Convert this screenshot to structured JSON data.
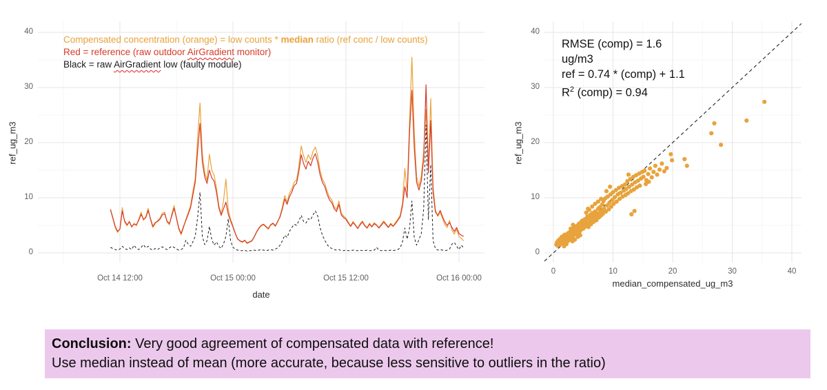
{
  "colors": {
    "orange": "#E9A23B",
    "red": "#D43A28",
    "black": "#1B1B1B",
    "scatter_point": "#E8A33C",
    "grid_major": "#E5E5E5",
    "grid_minor": "#F3F3F3",
    "identity_line": "#333333",
    "tick_label": "#606060",
    "axis_title": "#2B2B2B",
    "conclusion_bg": "#ECC9EC"
  },
  "chart_data": [
    {
      "type": "line",
      "title": "",
      "xlabel": "date",
      "ylabel": "ref_ug_m3",
      "ylim": [
        0,
        40
      ],
      "y_ticks": [
        0,
        10,
        20,
        30,
        40
      ],
      "x_ticks": [
        {
          "t": 12,
          "label": "Oct 14 12:00"
        },
        {
          "t": 24,
          "label": "Oct 15 00:00"
        },
        {
          "t": 36,
          "label": "Oct 15 12:00"
        },
        {
          "t": 48,
          "label": "Oct 16 00:00"
        }
      ],
      "x_minor_ticks": [
        6,
        18,
        30,
        42
      ],
      "time_axis_note": "t = hours since Oct 14 00:00",
      "t_start": 11.0,
      "t_step": 0.25,
      "legend": [
        {
          "color_key": "orange",
          "pre": "Compensated concentration (orange) = low counts * ",
          "bold": "median",
          "post": " ratio (ref conc / low counts)"
        },
        {
          "color_key": "red",
          "pre": "Red = reference (raw outdoor ",
          "spellcheck": "AirGradient",
          "post": " monitor)"
        },
        {
          "color_key": "black",
          "pre": "Black = raw ",
          "spellcheck": "AirGradient",
          "post": " low (faulty module)"
        }
      ],
      "series": [
        {
          "name": "compensated_orange",
          "color_key": "orange",
          "style": "solid",
          "values": [
            7.8,
            6.2,
            4.6,
            3.7,
            4.4,
            8.2,
            5.6,
            4.9,
            5.8,
            4.6,
            5.4,
            4.9,
            6.1,
            7.4,
            5.9,
            6.6,
            8.1,
            6.0,
            4.6,
            5.3,
            5.9,
            6.3,
            7.2,
            7.4,
            5.6,
            5.1,
            7.0,
            8.6,
            6.2,
            4.3,
            3.3,
            4.6,
            6.1,
            7.3,
            8.6,
            11.2,
            13.5,
            21.0,
            27.2,
            18.0,
            14.6,
            13.2,
            17.9,
            15.0,
            14.1,
            11.8,
            8.6,
            7.1,
            9.4,
            13.4,
            7.8,
            6.1,
            4.9,
            3.6,
            2.6,
            2.1,
            1.9,
            2.2,
            1.7,
            1.9,
            2.1,
            2.8,
            3.7,
            4.4,
            4.9,
            5.1,
            4.7,
            4.3,
            5.0,
            5.3,
            4.8,
            5.6,
            6.7,
            8.4,
            10.4,
            9.2,
            10.8,
            11.6,
            12.8,
            13.2,
            15.8,
            19.4,
            17.6,
            16.4,
            17.8,
            16.9,
            18.4,
            19.2,
            17.6,
            15.0,
            13.4,
            12.6,
            11.2,
            10.1,
            9.6,
            8.4,
            7.9,
            9.4,
            7.2,
            6.7,
            6.3,
            5.6,
            4.9,
            5.7,
            5.1,
            4.5,
            5.3,
            5.8,
            5.0,
            4.6,
            5.4,
            4.8,
            5.5,
            5.1,
            4.6,
            5.2,
            5.8,
            5.3,
            4.7,
            5.4,
            4.9,
            5.5,
            6.1,
            6.8,
            9.0,
            15.3,
            11.0,
            24.0,
            35.5,
            22.0,
            13.8,
            12.1,
            13.9,
            18.5,
            26.0,
            15.5,
            28.0,
            12.0,
            7.8,
            6.6,
            7.4,
            6.2,
            5.1,
            4.6,
            5.9,
            4.1,
            3.4,
            4.3,
            3.0,
            2.6,
            2.2
          ]
        },
        {
          "name": "reference_red",
          "color_key": "red",
          "style": "solid",
          "values": [
            7.9,
            6.4,
            4.8,
            3.9,
            4.3,
            7.6,
            5.8,
            5.1,
            5.6,
            4.8,
            5.2,
            5.1,
            5.9,
            7.0,
            6.1,
            6.4,
            7.7,
            6.2,
            4.8,
            5.5,
            5.7,
            6.1,
            6.9,
            7.1,
            5.8,
            5.3,
            6.7,
            8.1,
            6.4,
            4.5,
            3.5,
            4.8,
            5.9,
            7.0,
            8.2,
            10.5,
            12.8,
            18.5,
            23.5,
            16.5,
            13.8,
            12.6,
            15.0,
            13.6,
            13.0,
            11.0,
            8.2,
            6.8,
            8.0,
            9.2,
            7.0,
            5.8,
            4.7,
            3.5,
            2.5,
            2.2,
            2.0,
            2.3,
            1.8,
            2.0,
            2.2,
            2.9,
            3.8,
            4.5,
            5.0,
            5.2,
            4.8,
            4.4,
            5.1,
            5.4,
            4.9,
            5.7,
            6.5,
            8.0,
            9.8,
            8.8,
            10.2,
            11.0,
            12.2,
            12.6,
            14.8,
            17.8,
            16.2,
            15.2,
            16.6,
            15.8,
            17.2,
            18.0,
            16.4,
            14.2,
            12.8,
            12.0,
            10.6,
            9.6,
            9.1,
            8.0,
            7.5,
            8.8,
            6.9,
            6.4,
            6.1,
            5.4,
            4.8,
            5.5,
            5.0,
            4.4,
            5.1,
            5.6,
            4.9,
            4.5,
            5.2,
            4.7,
            5.3,
            5.0,
            4.5,
            5.0,
            5.6,
            5.1,
            4.6,
            5.2,
            4.8,
            5.3,
            5.9,
            6.5,
            8.5,
            12.0,
            10.0,
            22.0,
            29.5,
            19.0,
            12.8,
            11.4,
            13.0,
            17.0,
            30.5,
            14.5,
            24.0,
            11.0,
            7.4,
            6.8,
            7.7,
            6.6,
            5.6,
            5.0,
            5.5,
            4.6,
            3.9,
            4.6,
            3.5,
            3.2,
            3.0
          ]
        },
        {
          "name": "raw_airgradient_low_black",
          "color_key": "black",
          "style": "dashed",
          "values": [
            1.0,
            0.8,
            0.6,
            0.5,
            0.7,
            1.2,
            0.8,
            0.6,
            0.9,
            0.6,
            1.4,
            0.8,
            0.6,
            1.0,
            1.5,
            0.9,
            1.2,
            0.7,
            0.5,
            0.8,
            0.6,
            0.9,
            1.1,
            0.8,
            0.6,
            0.9,
            1.2,
            1.0,
            0.7,
            0.5,
            0.6,
            0.9,
            2.3,
            1.6,
            1.2,
            2.0,
            3.0,
            6.5,
            11.0,
            3.0,
            1.5,
            2.2,
            4.8,
            2.4,
            1.4,
            2.0,
            1.2,
            0.8,
            1.6,
            3.0,
            6.2,
            2.2,
            1.0,
            0.7,
            0.5,
            0.4,
            0.4,
            0.5,
            0.3,
            0.4,
            0.4,
            0.5,
            0.4,
            0.5,
            0.6,
            0.5,
            0.4,
            0.5,
            0.6,
            0.5,
            0.7,
            0.9,
            1.4,
            2.2,
            3.2,
            2.8,
            3.9,
            4.6,
            5.2,
            5.0,
            5.8,
            6.8,
            5.7,
            5.4,
            6.2,
            6.0,
            6.9,
            7.6,
            6.7,
            4.6,
            3.2,
            2.3,
            1.5,
            1.0,
            0.8,
            0.6,
            0.5,
            0.6,
            0.4,
            0.4,
            0.5,
            0.4,
            0.4,
            0.5,
            0.4,
            0.4,
            0.5,
            0.4,
            0.4,
            0.5,
            0.4,
            0.4,
            0.5,
            1.0,
            0.5,
            0.4,
            0.5,
            0.4,
            0.4,
            0.5,
            0.4,
            0.5,
            0.6,
            0.9,
            2.0,
            4.5,
            2.5,
            4.5,
            9.4,
            2.8,
            1.4,
            2.4,
            3.5,
            8.0,
            23.2,
            6.0,
            16.0,
            2.2,
            0.8,
            0.5,
            0.6,
            0.5,
            0.4,
            0.5,
            0.7,
            1.6,
            1.9,
            1.2,
            0.6,
            1.4,
            0.9
          ]
        }
      ]
    },
    {
      "type": "scatter",
      "title": "",
      "xlabel": "median_compensated_ug_m3",
      "ylabel": "ref_ug_m3",
      "xlim": [
        0,
        40
      ],
      "ylim": [
        0,
        40
      ],
      "x_ticks": [
        0,
        10,
        20,
        30,
        40
      ],
      "y_ticks": [
        0,
        10,
        20,
        30,
        40
      ],
      "identity_line": true,
      "annotation": {
        "line1": "RMSE (comp) = 1.6",
        "line2": "ug/m3",
        "line3": "ref = 0.74 * (comp) + 1.1",
        "line4_pre": "R",
        "line4_sup": "2",
        "line4_post": " (comp) = 0.94"
      },
      "points": [
        [
          0.5,
          1.5
        ],
        [
          0.6,
          1.9
        ],
        [
          0.7,
          1.3
        ],
        [
          0.8,
          2.2
        ],
        [
          0.9,
          1.6
        ],
        [
          1.0,
          2.4
        ],
        [
          1.0,
          1.8
        ],
        [
          1.1,
          1.5
        ],
        [
          1.2,
          2.6
        ],
        [
          1.3,
          2.0
        ],
        [
          1.4,
          1.7
        ],
        [
          1.4,
          2.9
        ],
        [
          1.5,
          2.3
        ],
        [
          1.6,
          2.8
        ],
        [
          1.6,
          1.9
        ],
        [
          1.7,
          3.1
        ],
        [
          1.8,
          2.4
        ],
        [
          1.9,
          2.0
        ],
        [
          1.9,
          3.3
        ],
        [
          2.0,
          2.7
        ],
        [
          2.0,
          1.9
        ],
        [
          2.1,
          3.0
        ],
        [
          2.2,
          2.4
        ],
        [
          2.3,
          3.4
        ],
        [
          2.4,
          2.8
        ],
        [
          2.5,
          2.2
        ],
        [
          2.5,
          3.6
        ],
        [
          2.6,
          3.0
        ],
        [
          2.7,
          2.5
        ],
        [
          2.8,
          3.8
        ],
        [
          2.9,
          3.2
        ],
        [
          3.0,
          4.0
        ],
        [
          3.0,
          2.7
        ],
        [
          3.1,
          3.5
        ],
        [
          3.2,
          4.2
        ],
        [
          3.3,
          3.0
        ],
        [
          3.4,
          3.8
        ],
        [
          3.4,
          4.5
        ],
        [
          3.5,
          3.3
        ],
        [
          3.6,
          4.1
        ],
        [
          3.7,
          3.6
        ],
        [
          3.7,
          4.8
        ],
        [
          3.8,
          4.3
        ],
        [
          3.9,
          3.4
        ],
        [
          4.0,
          4.6
        ],
        [
          4.0,
          3.8
        ],
        [
          4.1,
          5.0
        ],
        [
          4.2,
          4.2
        ],
        [
          4.3,
          3.6
        ],
        [
          4.3,
          5.3
        ],
        [
          4.4,
          4.6
        ],
        [
          4.5,
          4.0
        ],
        [
          4.6,
          5.5
        ],
        [
          4.6,
          4.8
        ],
        [
          4.7,
          4.3
        ],
        [
          4.8,
          5.8
        ],
        [
          4.9,
          5.0
        ],
        [
          5.0,
          4.4
        ],
        [
          5.0,
          5.9
        ],
        [
          5.1,
          5.2
        ],
        [
          3.2,
          2.1
        ],
        [
          3.6,
          2.4
        ],
        [
          4.1,
          2.9
        ],
        [
          4.5,
          3.2
        ],
        [
          2.9,
          4.4
        ],
        [
          3.3,
          5.1
        ],
        [
          2.2,
          1.6
        ],
        [
          1.8,
          1.2
        ],
        [
          5.2,
          4.7
        ],
        [
          5.3,
          6.1
        ],
        [
          5.3,
          5.5
        ],
        [
          5.4,
          4.8
        ],
        [
          5.5,
          6.2
        ],
        [
          5.6,
          5.1
        ],
        [
          5.7,
          6.6
        ],
        [
          5.8,
          5.5
        ],
        [
          5.9,
          4.7
        ],
        [
          6.0,
          6.3
        ],
        [
          6.1,
          5.7
        ],
        [
          6.2,
          6.9
        ],
        [
          6.3,
          5.2
        ],
        [
          6.4,
          6.0
        ],
        [
          6.5,
          7.2
        ],
        [
          6.6,
          6.4
        ],
        [
          6.7,
          5.6
        ],
        [
          6.8,
          7.0
        ],
        [
          6.9,
          6.1
        ],
        [
          7.0,
          7.5
        ],
        [
          7.1,
          6.6
        ],
        [
          7.2,
          5.9
        ],
        [
          7.3,
          7.2
        ],
        [
          7.4,
          6.3
        ],
        [
          7.5,
          8.0
        ],
        [
          7.6,
          7.0
        ],
        [
          7.7,
          6.5
        ],
        [
          7.8,
          8.3
        ],
        [
          7.9,
          7.4
        ],
        [
          8.0,
          6.8
        ],
        [
          6.0,
          7.8
        ],
        [
          6.5,
          8.4
        ],
        [
          7.0,
          8.9
        ],
        [
          5.5,
          7.3
        ],
        [
          7.5,
          9.3
        ],
        [
          8.0,
          9.8
        ],
        [
          5.8,
          8.0
        ],
        [
          8.1,
          7.6
        ],
        [
          8.2,
          8.8
        ],
        [
          8.3,
          7.1
        ],
        [
          8.4,
          9.4
        ],
        [
          8.5,
          8.0
        ],
        [
          8.7,
          9.9
        ],
        [
          8.8,
          7.5
        ],
        [
          9.0,
          8.6
        ],
        [
          9.1,
          10.2
        ],
        [
          9.3,
          7.9
        ],
        [
          9.4,
          9.1
        ],
        [
          9.6,
          10.6
        ],
        [
          9.7,
          8.4
        ],
        [
          9.9,
          9.6
        ],
        [
          10.0,
          11.0
        ],
        [
          10.1,
          8.9
        ],
        [
          10.3,
          10.1
        ],
        [
          10.5,
          11.4
        ],
        [
          10.6,
          9.3
        ],
        [
          10.8,
          10.6
        ],
        [
          11.0,
          11.8
        ],
        [
          11.1,
          9.8
        ],
        [
          11.3,
          10.9
        ],
        [
          11.5,
          12.1
        ],
        [
          11.6,
          10.2
        ],
        [
          11.8,
          11.3
        ],
        [
          12.0,
          12.4
        ],
        [
          12.1,
          10.5
        ],
        [
          8.9,
          11.2
        ],
        [
          9.5,
          12.0
        ],
        [
          12.2,
          11.6
        ],
        [
          12.4,
          13.0
        ],
        [
          12.5,
          10.8
        ],
        [
          12.7,
          12.0
        ],
        [
          12.9,
          13.4
        ],
        [
          13.0,
          11.2
        ],
        [
          13.2,
          12.4
        ],
        [
          13.4,
          13.8
        ],
        [
          13.5,
          11.5
        ],
        [
          13.7,
          12.8
        ],
        [
          13.9,
          14.1
        ],
        [
          14.0,
          11.9
        ],
        [
          14.2,
          13.1
        ],
        [
          14.4,
          14.4
        ],
        [
          14.5,
          12.2
        ],
        [
          14.7,
          13.5
        ],
        [
          14.9,
          14.7
        ],
        [
          13.1,
          7.0
        ],
        [
          13.6,
          7.6
        ],
        [
          12.6,
          14.2
        ],
        [
          15.1,
          13.8
        ],
        [
          15.3,
          14.9
        ],
        [
          15.6,
          13.2
        ],
        [
          15.9,
          14.3
        ],
        [
          16.2,
          15.3
        ],
        [
          16.5,
          13.7
        ],
        [
          16.8,
          14.7
        ],
        [
          17.1,
          15.8
        ],
        [
          17.4,
          14.2
        ],
        [
          17.8,
          15.1
        ],
        [
          18.2,
          16.2
        ],
        [
          18.6,
          14.8
        ],
        [
          19.0,
          15.4
        ],
        [
          15.5,
          12.5
        ],
        [
          16.0,
          12.9
        ],
        [
          19.7,
          17.9
        ],
        [
          19.9,
          16.8
        ],
        [
          22.0,
          17.0
        ],
        [
          22.4,
          15.8
        ],
        [
          26.5,
          21.7
        ],
        [
          27.0,
          23.5
        ],
        [
          28.1,
          19.6
        ],
        [
          32.4,
          24.0
        ],
        [
          35.4,
          27.4
        ]
      ]
    }
  ],
  "conclusion": {
    "bold": "Conclusion:",
    "line1_rest": " Very good agreement of compensated data with reference!",
    "line2": "Use median instead of mean (more accurate, because less sensitive to outliers in the ratio)"
  }
}
